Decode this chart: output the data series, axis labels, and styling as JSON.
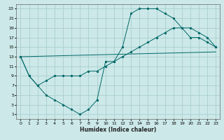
{
  "xlabel": "Humidex (Indice chaleur)",
  "bg_color": "#cce8e8",
  "grid_color": "#aacece",
  "line_color": "#006868",
  "xlim": [
    -0.5,
    23.5
  ],
  "ylim": [
    0,
    24
  ],
  "xticks": [
    0,
    1,
    2,
    3,
    4,
    5,
    6,
    7,
    8,
    9,
    10,
    11,
    12,
    13,
    14,
    15,
    16,
    17,
    18,
    19,
    20,
    21,
    22,
    23
  ],
  "yticks": [
    1,
    3,
    5,
    7,
    9,
    11,
    13,
    15,
    17,
    19,
    21,
    23
  ],
  "curve1_x": [
    0,
    1,
    2,
    3,
    4,
    5,
    6,
    7,
    8,
    9,
    10,
    11,
    12,
    13,
    14,
    15,
    16,
    17,
    18,
    19,
    20,
    21,
    22,
    23
  ],
  "curve1_y": [
    13,
    9,
    7,
    5,
    4,
    3,
    2,
    1,
    2,
    4,
    12,
    12,
    15,
    22,
    23,
    23,
    23,
    22,
    21,
    19,
    17,
    17,
    16,
    15
  ],
  "curve2_x": [
    0,
    1,
    2,
    3,
    4,
    5,
    6,
    7,
    8,
    9,
    10,
    11,
    12,
    13,
    14,
    15,
    16,
    17,
    18,
    19,
    20,
    21,
    22,
    23
  ],
  "curve2_y": [
    13,
    9,
    7,
    8,
    9,
    9,
    9,
    9,
    10,
    10,
    11,
    12,
    13,
    14,
    15,
    16,
    17,
    18,
    19,
    19,
    19,
    18,
    17,
    15
  ],
  "curve3_x": [
    0,
    23
  ],
  "curve3_y": [
    13,
    14
  ]
}
